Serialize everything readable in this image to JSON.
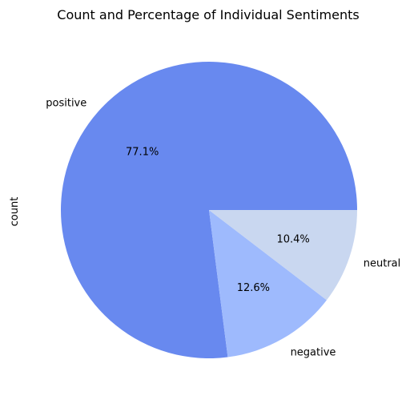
{
  "chart_data": {
    "type": "pie",
    "title": "Count and Percentage of Individual Sentiments",
    "ylabel": "count",
    "categories": [
      "positive",
      "negative",
      "neutral"
    ],
    "values": [
      77.1,
      12.6,
      10.4
    ],
    "percent_labels": [
      "77.1%",
      "12.6%",
      "10.4%"
    ],
    "colors": [
      "#6889ef",
      "#9ebafd",
      "#c9d7f0"
    ],
    "start_angle": 0,
    "direction": "counterclockwise"
  }
}
